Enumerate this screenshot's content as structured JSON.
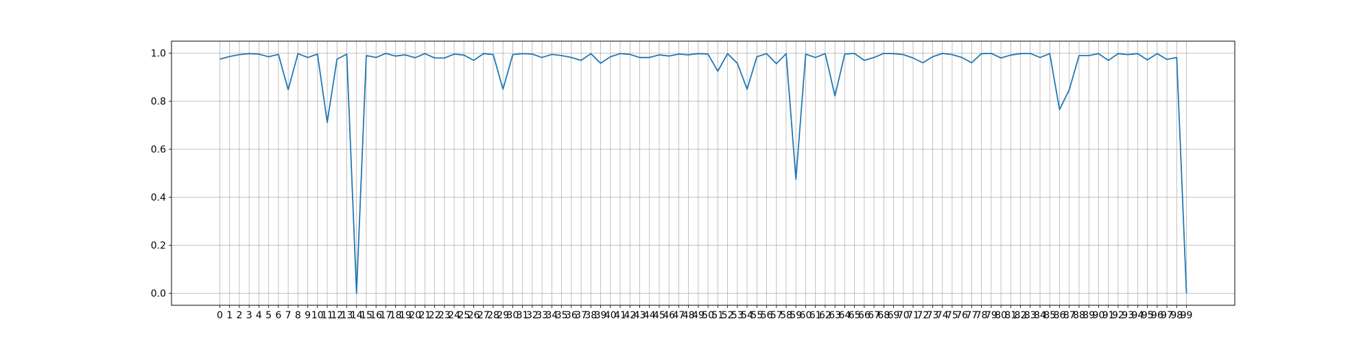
{
  "chart_data": {
    "type": "line",
    "title": "",
    "xlabel": "",
    "ylabel": "",
    "x": [
      0,
      1,
      2,
      3,
      4,
      5,
      6,
      7,
      8,
      9,
      10,
      11,
      12,
      13,
      14,
      15,
      16,
      17,
      18,
      19,
      20,
      21,
      22,
      23,
      24,
      25,
      26,
      27,
      28,
      29,
      30,
      31,
      32,
      33,
      34,
      35,
      36,
      37,
      38,
      39,
      40,
      41,
      42,
      43,
      44,
      45,
      46,
      47,
      48,
      49,
      50,
      51,
      52,
      53,
      54,
      55,
      56,
      57,
      58,
      59,
      60,
      61,
      62,
      63,
      64,
      65,
      66,
      67,
      68,
      69,
      70,
      71,
      72,
      73,
      74,
      75,
      76,
      77,
      78,
      79,
      80,
      81,
      82,
      83,
      84,
      85,
      86,
      87,
      88,
      89,
      90,
      91,
      92,
      93,
      94,
      95,
      96,
      97,
      98,
      99
    ],
    "xticklabels": [
      "0",
      "1",
      "2",
      "3",
      "4",
      "5",
      "6",
      "7",
      "8",
      "9",
      "10",
      "11",
      "12",
      "13",
      "14",
      "15",
      "16",
      "17",
      "18",
      "19",
      "20",
      "21",
      "22",
      "23",
      "24",
      "25",
      "26",
      "27",
      "28",
      "29",
      "30",
      "31",
      "32",
      "33",
      "34",
      "35",
      "36",
      "37",
      "38",
      "39",
      "40",
      "41",
      "42",
      "43",
      "44",
      "45",
      "46",
      "47",
      "48",
      "49",
      "50",
      "51",
      "52",
      "53",
      "54",
      "55",
      "56",
      "57",
      "58",
      "59",
      "60",
      "61",
      "62",
      "63",
      "64",
      "65",
      "66",
      "67",
      "68",
      "69",
      "70",
      "71",
      "72",
      "73",
      "74",
      "75",
      "76",
      "77",
      "78",
      "79",
      "80",
      "81",
      "82",
      "83",
      "84",
      "85",
      "86",
      "87",
      "88",
      "89",
      "90",
      "91",
      "92",
      "93",
      "94",
      "95",
      "96",
      "97",
      "98",
      "99"
    ],
    "yticks": [
      0.0,
      0.2,
      0.4,
      0.6,
      0.8,
      1.0
    ],
    "yticklabels": [
      "0.0",
      "0.2",
      "0.4",
      "0.6",
      "0.8",
      "1.0"
    ],
    "xlim": [
      -4.95,
      103.95
    ],
    "ylim": [
      -0.05,
      1.05
    ],
    "grid": true,
    "series": [
      {
        "color": "#1f77b4",
        "values": [
          0.975,
          0.986,
          0.994,
          0.998,
          0.996,
          0.985,
          0.995,
          0.848,
          0.998,
          0.982,
          0.996,
          0.712,
          0.975,
          0.996,
          0.0,
          0.99,
          0.982,
          0.999,
          0.988,
          0.993,
          0.981,
          0.998,
          0.98,
          0.98,
          0.996,
          0.992,
          0.97,
          0.998,
          0.994,
          0.85,
          0.994,
          0.998,
          0.996,
          0.982,
          0.995,
          0.99,
          0.982,
          0.97,
          0.998,
          0.958,
          0.985,
          0.998,
          0.995,
          0.982,
          0.982,
          0.993,
          0.988,
          0.996,
          0.993,
          0.998,
          0.996,
          0.925,
          0.998,
          0.958,
          0.85,
          0.985,
          0.998,
          0.956,
          0.998,
          0.475,
          0.996,
          0.982,
          0.998,
          0.822,
          0.996,
          0.999,
          0.97,
          0.982,
          0.999,
          0.998,
          0.994,
          0.98,
          0.96,
          0.985,
          0.999,
          0.994,
          0.982,
          0.96,
          0.998,
          0.999,
          0.98,
          0.992,
          0.998,
          0.999,
          0.982,
          0.998,
          0.765,
          0.848,
          0.99,
          0.99,
          0.998,
          0.97,
          0.998,
          0.994,
          0.998,
          0.972,
          0.998,
          0.974,
          0.982,
          0.0
        ]
      }
    ]
  }
}
